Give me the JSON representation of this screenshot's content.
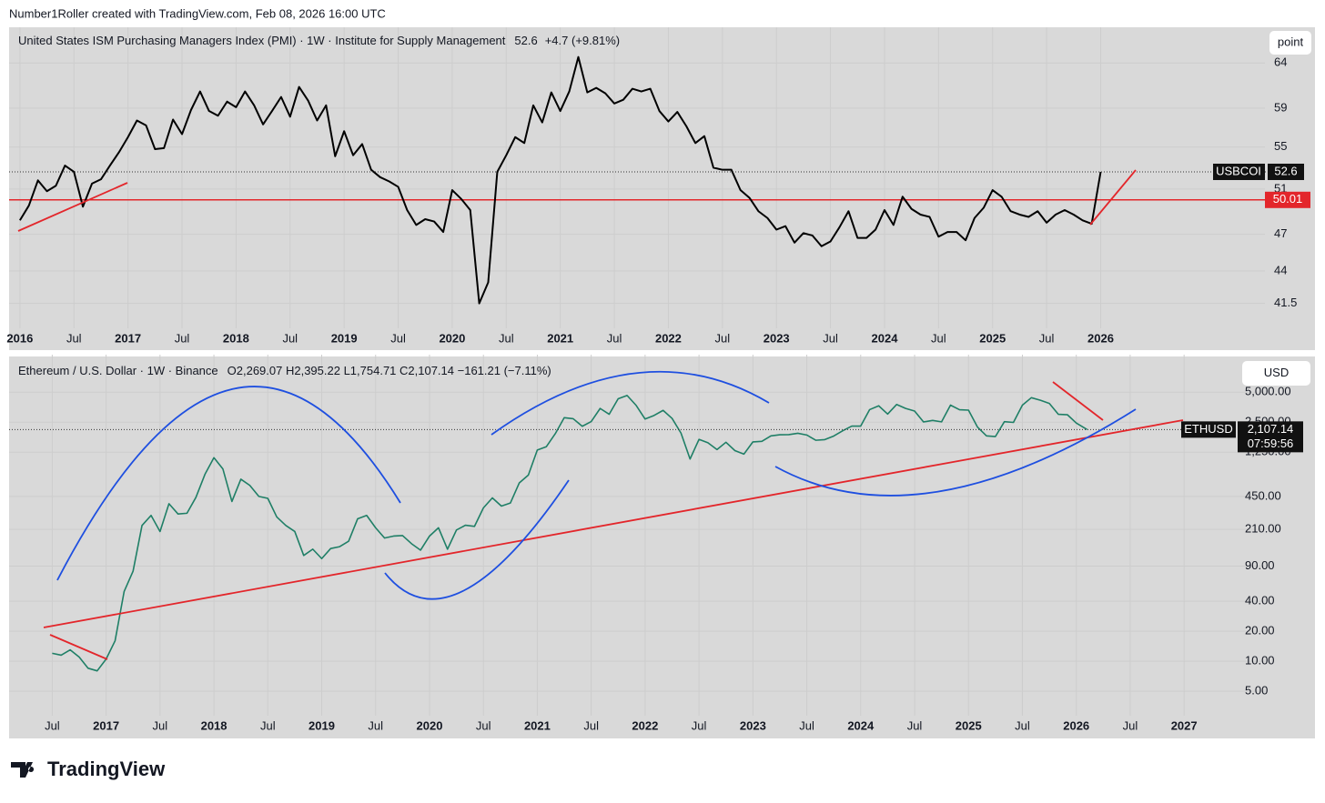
{
  "header": "Number1Roller created with TradingView.com, Feb 08, 2026 16:00 UTC",
  "footer": "TradingView",
  "chart_data": [
    {
      "type": "line",
      "title": "United States ISM Purchasing Managers Index (PMI) · 1W · Institute for Supply Management",
      "change": "+4.7 (+9.81%)",
      "scale_button": "point",
      "symbol": "USBCOI",
      "ref_line": 50.01,
      "log": true,
      "xlim": [
        2015.9,
        2027.52
      ],
      "ylim": [
        40.4,
        67.7
      ],
      "xticks": [
        2016,
        {
          "value": 2016.5,
          "label": "Jul"
        },
        2017,
        {
          "value": 2017.5,
          "label": "Jul"
        },
        2018,
        {
          "value": 2018.5,
          "label": "Jul"
        },
        2019,
        {
          "value": 2019.5,
          "label": "Jul"
        },
        2020,
        {
          "value": 2020.5,
          "label": "Jul"
        },
        2021,
        {
          "value": 2021.5,
          "label": "Jul"
        },
        2022,
        {
          "value": 2022.5,
          "label": "Jul"
        },
        2023,
        {
          "value": 2023.5,
          "label": "Jul"
        },
        2024,
        {
          "value": 2024.5,
          "label": "Jul"
        },
        2025,
        {
          "value": 2025.5,
          "label": "Jul"
        },
        2026
      ],
      "yticks": [
        41.5,
        44,
        47,
        51,
        55,
        59,
        64
      ],
      "x": [
        2016,
        2016.083,
        2016.167,
        2016.25,
        2016.333,
        2016.417,
        2016.5,
        2016.583,
        2016.667,
        2016.75,
        2016.833,
        2016.917,
        2017,
        2017.083,
        2017.167,
        2017.25,
        2017.333,
        2017.417,
        2017.5,
        2017.583,
        2017.667,
        2017.75,
        2017.833,
        2017.917,
        2018,
        2018.083,
        2018.167,
        2018.25,
        2018.333,
        2018.417,
        2018.5,
        2018.583,
        2018.667,
        2018.75,
        2018.833,
        2018.917,
        2019,
        2019.083,
        2019.167,
        2019.25,
        2019.333,
        2019.417,
        2019.5,
        2019.583,
        2019.667,
        2019.75,
        2019.833,
        2019.917,
        2020,
        2020.083,
        2020.167,
        2020.25,
        2020.333,
        2020.417,
        2020.5,
        2020.583,
        2020.667,
        2020.75,
        2020.833,
        2020.917,
        2021,
        2021.083,
        2021.167,
        2021.25,
        2021.333,
        2021.417,
        2021.5,
        2021.583,
        2021.667,
        2021.75,
        2021.833,
        2021.917,
        2022,
        2022.083,
        2022.167,
        2022.25,
        2022.333,
        2022.417,
        2022.5,
        2022.583,
        2022.667,
        2022.75,
        2022.833,
        2022.917,
        2023,
        2023.083,
        2023.167,
        2023.25,
        2023.333,
        2023.417,
        2023.5,
        2023.583,
        2023.667,
        2023.75,
        2023.833,
        2023.917,
        2024,
        2024.083,
        2024.167,
        2024.25,
        2024.333,
        2024.417,
        2024.5,
        2024.583,
        2024.667,
        2024.75,
        2024.833,
        2024.917,
        2025,
        2025.083,
        2025.167,
        2025.25,
        2025.333,
        2025.417,
        2025.5,
        2025.583,
        2025.667,
        2025.75,
        2025.833,
        2025.917,
        2026
      ],
      "series": [
        {
          "name": "USBCOI",
          "color": "#000000",
          "values": [
            48.2,
            49.5,
            51.8,
            50.8,
            51.3,
            53.2,
            52.6,
            49.4,
            51.5,
            51.9,
            53.2,
            54.5,
            56,
            57.7,
            57.2,
            54.8,
            54.9,
            57.8,
            56.3,
            58.8,
            60.8,
            58.7,
            58.2,
            59.7,
            59.1,
            60.8,
            59.3,
            57.3,
            58.7,
            60.2,
            58.1,
            61.3,
            59.8,
            57.7,
            59.3,
            54.1,
            56.6,
            54.2,
            55.3,
            52.8,
            52.1,
            51.7,
            51.2,
            49.1,
            47.8,
            48.3,
            48.1,
            47.2,
            50.9,
            50.1,
            49.1,
            41.5,
            43.1,
            52.6,
            54.2,
            56,
            55.4,
            59.3,
            57.5,
            60.7,
            58.7,
            60.8,
            64.7,
            60.7,
            61.2,
            60.6,
            59.5,
            59.9,
            61.1,
            60.8,
            61.1,
            58.7,
            57.6,
            58.6,
            57.1,
            55.4,
            56.1,
            53,
            52.8,
            52.8,
            50.9,
            50.2,
            49,
            48.4,
            47.4,
            47.7,
            46.3,
            47.1,
            46.9,
            46,
            46.4,
            47.6,
            49,
            46.7,
            46.7,
            47.4,
            49.1,
            47.8,
            50.3,
            49.2,
            48.7,
            48.5,
            46.8,
            47.2,
            47.2,
            46.5,
            48.4,
            49.3,
            50.9,
            50.3,
            49,
            48.7,
            48.5,
            49,
            48,
            48.7,
            49.1,
            48.7,
            48.2,
            47.9,
            52.6
          ]
        }
      ]
    },
    {
      "type": "line",
      "title": "Ethereum / U.S. Dollar · 1W · Binance",
      "ohlc": "O2,269.07  H2,395.22  L1,754.71  C2,107.14  −161.21 (−7.11%)",
      "scale_button": "USD",
      "symbol": "ETHUSD",
      "price_label": "2,107.14",
      "countdown": "07:59:56",
      "log": true,
      "xlim": [
        2016.1,
        2027.75
      ],
      "ylim": [
        1.68,
        10700
      ],
      "xticks": [
        {
          "value": 2016.5,
          "label": "Jul"
        },
        2017,
        {
          "value": 2017.5,
          "label": "Jul"
        },
        2018,
        {
          "value": 2018.5,
          "label": "Jul"
        },
        2019,
        {
          "value": 2019.5,
          "label": "Jul"
        },
        2020,
        {
          "value": 2020.5,
          "label": "Jul"
        },
        2021,
        {
          "value": 2021.5,
          "label": "Jul"
        },
        2022,
        {
          "value": 2022.5,
          "label": "Jul"
        },
        2023,
        {
          "value": 2023.5,
          "label": "Jul"
        },
        2024,
        {
          "value": 2024.5,
          "label": "Jul"
        },
        2025,
        {
          "value": 2025.5,
          "label": "Jul"
        },
        2026,
        {
          "value": 2026.5,
          "label": "Jul"
        },
        2027
      ],
      "yticks": [
        {
          "value": 5,
          "label": "5.00"
        },
        {
          "value": 10,
          "label": "10.00"
        },
        {
          "value": 20,
          "label": "20.00"
        },
        {
          "value": 40,
          "label": "40.00"
        },
        {
          "value": 90,
          "label": "90.00"
        },
        {
          "value": 210,
          "label": "210.00"
        },
        {
          "value": 450,
          "label": "450.00"
        },
        {
          "value": 1250,
          "label": "1,250.00"
        },
        {
          "value": 2500,
          "label": "2,500.00"
        },
        {
          "value": 5000,
          "label": "5,000.00"
        }
      ],
      "x": [
        2016.5,
        2016.583,
        2016.667,
        2016.75,
        2016.833,
        2016.917,
        2017,
        2017.083,
        2017.167,
        2017.25,
        2017.333,
        2017.417,
        2017.5,
        2017.583,
        2017.667,
        2017.75,
        2017.833,
        2017.917,
        2018,
        2018.083,
        2018.167,
        2018.25,
        2018.333,
        2018.417,
        2018.5,
        2018.583,
        2018.667,
        2018.75,
        2018.833,
        2018.917,
        2019,
        2019.083,
        2019.167,
        2019.25,
        2019.333,
        2019.417,
        2019.5,
        2019.583,
        2019.667,
        2019.75,
        2019.833,
        2019.917,
        2020,
        2020.083,
        2020.167,
        2020.25,
        2020.333,
        2020.417,
        2020.5,
        2020.583,
        2020.667,
        2020.75,
        2020.833,
        2020.917,
        2021,
        2021.083,
        2021.167,
        2021.25,
        2021.333,
        2021.417,
        2021.5,
        2021.583,
        2021.667,
        2021.75,
        2021.833,
        2021.917,
        2022,
        2022.083,
        2022.167,
        2022.25,
        2022.333,
        2022.417,
        2022.5,
        2022.583,
        2022.667,
        2022.75,
        2022.833,
        2022.917,
        2023,
        2023.083,
        2023.167,
        2023.25,
        2023.333,
        2023.417,
        2023.5,
        2023.583,
        2023.667,
        2023.75,
        2023.833,
        2023.917,
        2024,
        2024.083,
        2024.167,
        2024.25,
        2024.333,
        2024.417,
        2024.5,
        2024.583,
        2024.667,
        2024.75,
        2024.833,
        2024.917,
        2025,
        2025.083,
        2025.167,
        2025.25,
        2025.333,
        2025.417,
        2025.5,
        2025.583,
        2025.667,
        2025.75,
        2025.833,
        2025.917,
        2026,
        2026.1
      ],
      "series": [
        {
          "name": "ETHUSD",
          "color": "#1f7f66",
          "values": [
            12,
            11.5,
            13,
            11,
            8.5,
            8,
            10.5,
            16,
            50,
            80,
            230,
            290,
            200,
            380,
            300,
            305,
            440,
            750,
            1100,
            850,
            400,
            670,
            580,
            450,
            430,
            280,
            230,
            200,
            115,
            133,
            107,
            135,
            141,
            160,
            268,
            290,
            218,
            172,
            180,
            182,
            151,
            130,
            180,
            218,
            133,
            207,
            231,
            225,
            345,
            435,
            360,
            386,
            615,
            737,
            1314,
            1416,
            1918,
            2773,
            2707,
            2274,
            2536,
            3433,
            3001,
            4288,
            4630,
            3683,
            2688,
            2920,
            3282,
            2727,
            1942,
            1067,
            1679,
            1553,
            1328,
            1572,
            1296,
            1196,
            1585,
            1605,
            1822,
            1870,
            1874,
            1934,
            1857,
            1646,
            1671,
            1815,
            2048,
            2282,
            2283,
            3340,
            3647,
            3015,
            3760,
            3433,
            3232,
            2513,
            2602,
            2518,
            3705,
            3332,
            3300,
            2237,
            1822,
            1794,
            2528,
            2486,
            3700,
            4400,
            4145,
            3850,
            3000,
            2970,
            2450,
            2107.14
          ]
        }
      ]
    }
  ]
}
